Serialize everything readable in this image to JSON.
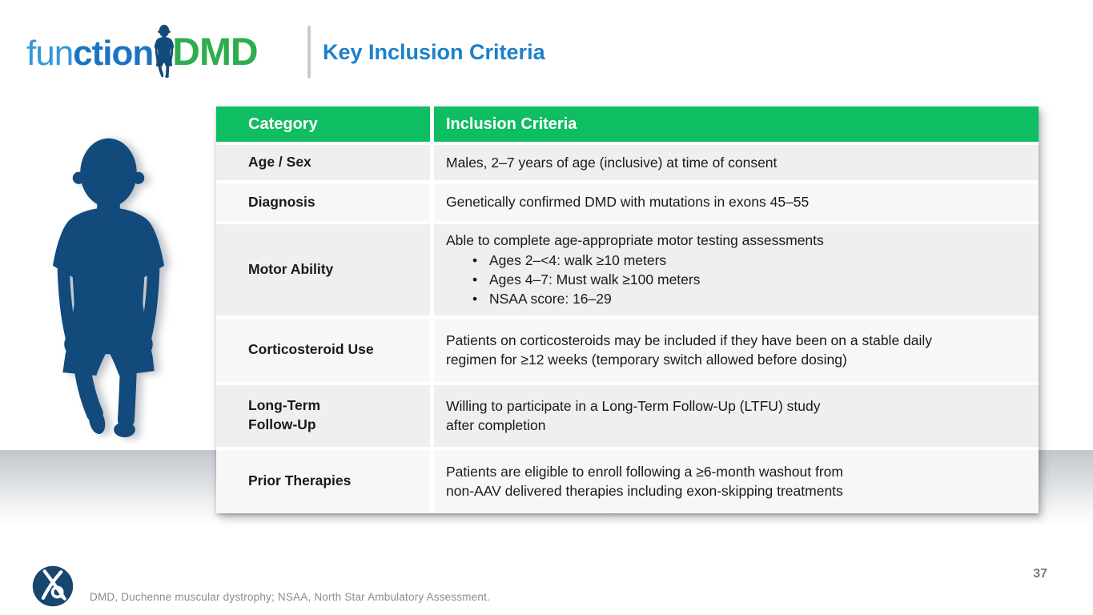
{
  "logo": {
    "fun": "fun",
    "ction": "ction",
    "dmd": "DMD"
  },
  "title": "Key Inclusion Criteria",
  "table": {
    "headers": [
      "Category",
      "Inclusion Criteria"
    ],
    "rows": [
      {
        "category_lines": [
          "Age / Sex"
        ],
        "lines": [
          "Males, 2–7 years of age (inclusive) at time of consent"
        ],
        "bullets": []
      },
      {
        "category_lines": [
          "Diagnosis"
        ],
        "lines": [
          "Genetically confirmed DMD with mutations in exons 45–55"
        ],
        "bullets": []
      },
      {
        "category_lines": [
          "Motor Ability"
        ],
        "lines": [
          "Able to complete age-appropriate motor testing assessments"
        ],
        "bullets": [
          "Ages 2–<4: walk ≥10 meters",
          "Ages 4–7: Must walk ≥100 meters",
          "NSAA score: 16–29"
        ]
      },
      {
        "category_lines": [
          "Corticosteroid Use"
        ],
        "lines": [
          "Patients on corticosteroids may be included if they have been on a stable daily",
          "regimen for ≥12 weeks (temporary switch allowed before dosing)"
        ],
        "bullets": []
      },
      {
        "category_lines": [
          "Long-Term",
          "Follow-Up"
        ],
        "lines": [
          "Willing to participate in a Long-Term Follow-Up (LTFU) study",
          "after completion"
        ],
        "bullets": []
      },
      {
        "category_lines": [
          "Prior Therapies"
        ],
        "lines": [
          "Patients are eligible to enroll following a ≥6-month washout from",
          "non-AAV delivered therapies including exon-skipping treatments"
        ],
        "bullets": []
      }
    ]
  },
  "footer": {
    "footnote": "DMD, Duchenne muscular dystrophy; NSAA, North Star Ambulatory Assessment.",
    "page_number": "37"
  },
  "colors": {
    "table_header_green": "#0fbd62",
    "title_blue": "#1b80cc",
    "logo_blue_light": "#3399d6",
    "logo_blue_dark": "#1c74c0",
    "logo_green": "#2ead4e",
    "silhouette_navy": "#114a7b",
    "row_gray": "#efeff1",
    "row_light": "#f7f7f8",
    "footnote_gray": "#8c8c8c"
  },
  "icons": {
    "child_silhouette": "walking-boy",
    "company_logo": "circular-ribbon-mark"
  }
}
